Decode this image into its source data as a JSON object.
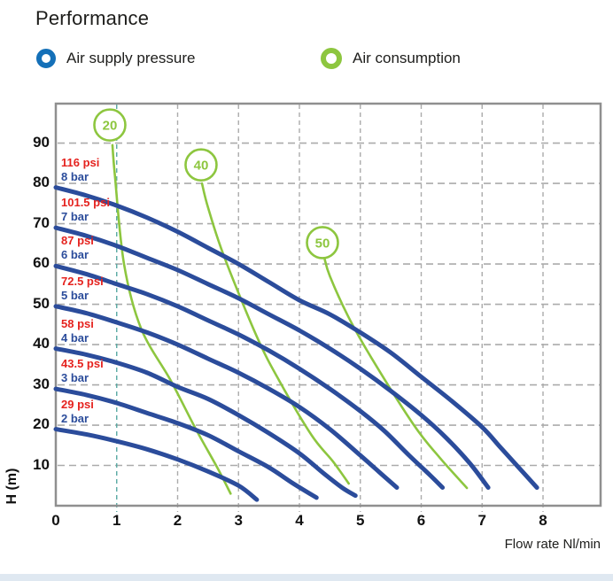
{
  "title": "Performance",
  "legend": {
    "supply_label": "Air supply pressure",
    "consumption_label": "Air consumption"
  },
  "axes": {
    "y_label": "H (m)",
    "x_label": "Flow rate Nl/min",
    "y_ticks": [
      "90",
      "80",
      "70",
      "60",
      "50",
      "40",
      "30",
      "20",
      "10"
    ],
    "x_ticks": [
      "0",
      "1",
      "2",
      "3",
      "4",
      "5",
      "6",
      "7",
      "8"
    ]
  },
  "colors": {
    "curve_blue": "#2b4c9b",
    "curve_green": "#8dc63f",
    "legend_blue": "#1470b8",
    "psi_red": "#e5231f",
    "bar_blue": "#2b4c9b",
    "grid_gray": "#ababab",
    "grid_teal": "#57a8a2",
    "border_gray": "#8f8f8f"
  },
  "chart_data": {
    "type": "line",
    "title": "Performance",
    "xlabel": "Flow rate Nl/min",
    "ylabel": "H (m)",
    "xlim": [
      0,
      8.95
    ],
    "ylim": [
      0,
      100
    ],
    "grid": true,
    "x_gridlines": [
      1,
      2,
      3,
      4,
      5,
      6,
      7,
      8
    ],
    "y_gridlines": [
      10,
      20,
      30,
      40,
      50,
      60,
      70,
      80,
      90
    ],
    "legend_position": "top",
    "series": [
      {
        "name": "8 bar",
        "psi_label": "116 psi",
        "bar_label": "8 bar",
        "points": [
          [
            0,
            79
          ],
          [
            0.5,
            77
          ],
          [
            1,
            74.5
          ],
          [
            1.5,
            71.5
          ],
          [
            2,
            68
          ],
          [
            2.5,
            64
          ],
          [
            3,
            60
          ],
          [
            3.5,
            55.5
          ],
          [
            4,
            51
          ],
          [
            4.5,
            47.5
          ],
          [
            5,
            43
          ],
          [
            5.5,
            38
          ],
          [
            6,
            32
          ],
          [
            6.5,
            26
          ],
          [
            7,
            19.5
          ],
          [
            7.3,
            14.5
          ],
          [
            7.6,
            9.5
          ],
          [
            7.9,
            4.5
          ]
        ]
      },
      {
        "name": "7 bar",
        "psi_label": "101.5 psi",
        "bar_label": "7 bar",
        "points": [
          [
            0,
            69
          ],
          [
            0.5,
            67
          ],
          [
            1,
            64.5
          ],
          [
            1.5,
            61.5
          ],
          [
            2,
            58.5
          ],
          [
            2.5,
            55
          ],
          [
            3,
            51.5
          ],
          [
            3.5,
            47.5
          ],
          [
            4,
            43.5
          ],
          [
            4.5,
            39
          ],
          [
            5,
            34
          ],
          [
            5.5,
            28.5
          ],
          [
            6,
            22.5
          ],
          [
            6.4,
            17
          ],
          [
            6.8,
            10.5
          ],
          [
            7.1,
            4.5
          ]
        ]
      },
      {
        "name": "6 bar",
        "psi_label": "87 psi",
        "bar_label": "6 bar",
        "points": [
          [
            0,
            59.5
          ],
          [
            0.5,
            57.5
          ],
          [
            1,
            55
          ],
          [
            1.5,
            52.5
          ],
          [
            2,
            49.5
          ],
          [
            2.5,
            46
          ],
          [
            3,
            42.5
          ],
          [
            3.5,
            38.5
          ],
          [
            4,
            34
          ],
          [
            4.5,
            29
          ],
          [
            5,
            23.5
          ],
          [
            5.4,
            18.5
          ],
          [
            5.8,
            12.5
          ],
          [
            6.15,
            7.5
          ],
          [
            6.35,
            4.5
          ]
        ]
      },
      {
        "name": "5 bar",
        "psi_label": "72.5 psi",
        "bar_label": "5 bar",
        "points": [
          [
            0,
            49.5
          ],
          [
            0.5,
            47.8
          ],
          [
            1,
            45.5
          ],
          [
            1.5,
            43
          ],
          [
            2,
            40
          ],
          [
            2.5,
            36.5
          ],
          [
            3,
            33
          ],
          [
            3.5,
            29
          ],
          [
            4,
            24.5
          ],
          [
            4.5,
            19
          ],
          [
            5,
            12.5
          ],
          [
            5.3,
            8.5
          ],
          [
            5.6,
            4.5
          ]
        ]
      },
      {
        "name": "4 bar",
        "psi_label": "58 psi",
        "bar_label": "4 bar",
        "points": [
          [
            0,
            39
          ],
          [
            0.5,
            37.5
          ],
          [
            1,
            35.5
          ],
          [
            1.5,
            33
          ],
          [
            2,
            29.5
          ],
          [
            2.5,
            26.5
          ],
          [
            3,
            22.5
          ],
          [
            3.5,
            18
          ],
          [
            4,
            13
          ],
          [
            4.4,
            8
          ],
          [
            4.7,
            4.5
          ],
          [
            4.92,
            2.5
          ]
        ]
      },
      {
        "name": "3 bar",
        "psi_label": "43.5 psi",
        "bar_label": "3 bar",
        "points": [
          [
            0,
            29
          ],
          [
            0.5,
            27.5
          ],
          [
            1,
            25.5
          ],
          [
            1.5,
            23
          ],
          [
            2,
            20.5
          ],
          [
            2.5,
            17.5
          ],
          [
            3,
            13.5
          ],
          [
            3.5,
            9.5
          ],
          [
            3.9,
            5.5
          ],
          [
            4.28,
            2
          ]
        ]
      },
      {
        "name": "2 bar",
        "psi_label": "29 psi",
        "bar_label": "2 bar",
        "points": [
          [
            0,
            19
          ],
          [
            0.5,
            17.7
          ],
          [
            1,
            16
          ],
          [
            1.5,
            14
          ],
          [
            2,
            11.5
          ],
          [
            2.5,
            8.5
          ],
          [
            3,
            5
          ],
          [
            3.3,
            1.5
          ]
        ]
      }
    ],
    "consumption_curves": [
      {
        "label": "20",
        "circle": {
          "x": 0.887,
          "y": 94.5
        },
        "points": [
          [
            0.93,
            89.5
          ],
          [
            0.97,
            82
          ],
          [
            1.12,
            60
          ],
          [
            1.4,
            44
          ],
          [
            1.89,
            31
          ],
          [
            2.3,
            19
          ],
          [
            2.65,
            9.5
          ],
          [
            2.87,
            3
          ]
        ]
      },
      {
        "label": "40",
        "circle": {
          "x": 2.385,
          "y": 84.6
        },
        "points": [
          [
            2.4,
            80
          ],
          [
            2.5,
            74
          ],
          [
            2.76,
            62
          ],
          [
            3.3,
            42
          ],
          [
            3.67,
            31
          ],
          [
            4.2,
            17.5
          ],
          [
            4.55,
            11
          ],
          [
            4.81,
            5.5
          ]
        ]
      },
      {
        "label": "50",
        "circle": {
          "x": 4.378,
          "y": 65.3
        },
        "points": [
          [
            4.41,
            61.5
          ],
          [
            4.5,
            57
          ],
          [
            4.8,
            47
          ],
          [
            5.19,
            36.5
          ],
          [
            5.88,
            20
          ],
          [
            6.3,
            12
          ],
          [
            6.75,
            4.4
          ]
        ]
      }
    ]
  }
}
